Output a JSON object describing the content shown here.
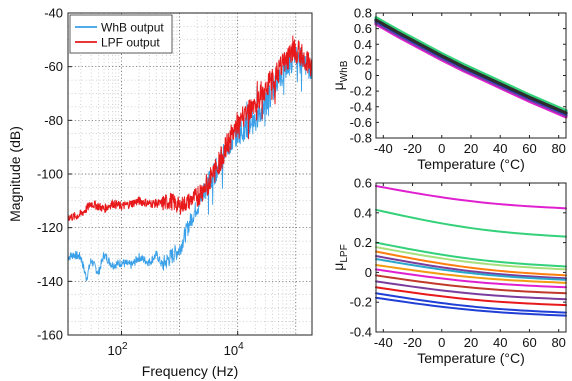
{
  "chart_data": [
    {
      "type": "line",
      "xlabel": "Frequency (Hz)",
      "ylabel": "Magnitude (dB)",
      "x_scale": "log",
      "xlim": [
        12,
        190000
      ],
      "ylim": [
        -160,
        -40
      ],
      "xticks": [
        100,
        10000
      ],
      "xtick_labels": [
        "10",
        "10"
      ],
      "xtick_exponents": [
        "2",
        "4"
      ],
      "yticks": [
        -160,
        -140,
        -120,
        -100,
        -80,
        -60,
        -40
      ],
      "ytick_labels": [
        "-160",
        "-140",
        "-120",
        "-100",
        "-80",
        "-60",
        "-40"
      ],
      "grid": true,
      "legend_placement": "top-left",
      "series": [
        {
          "name": "WhB output",
          "color": "#3aa0e8",
          "x": [
            12,
            15,
            20,
            25,
            30,
            40,
            50,
            70,
            100,
            150,
            200,
            300,
            400,
            500,
            700,
            1000,
            1500,
            2000,
            3000,
            5000,
            7000,
            10000,
            20000,
            30000,
            50000,
            70000,
            100000,
            150000,
            190000
          ],
          "y": [
            -131,
            -130,
            -131,
            -139,
            -132,
            -137,
            -130,
            -134,
            -133,
            -134,
            -131,
            -133,
            -130,
            -134,
            -131,
            -128,
            -118,
            -112,
            -104,
            -96,
            -89,
            -85,
            -80,
            -74,
            -65,
            -60,
            -56,
            -58,
            -63
          ]
        },
        {
          "name": "LPF output",
          "color": "#e8191b",
          "x": [
            12,
            15,
            20,
            25,
            30,
            40,
            50,
            70,
            100,
            150,
            200,
            300,
            400,
            500,
            700,
            1000,
            1500,
            2000,
            3000,
            5000,
            7000,
            10000,
            20000,
            30000,
            50000,
            70000,
            100000,
            150000,
            190000
          ],
          "y": [
            -116,
            -116,
            -115,
            -113,
            -111,
            -112,
            -113,
            -111,
            -112,
            -111,
            -110,
            -111,
            -111,
            -111,
            -110,
            -112,
            -110,
            -108,
            -104,
            -95,
            -88,
            -81,
            -74,
            -68,
            -62,
            -57,
            -54,
            -57,
            -60
          ]
        }
      ]
    },
    {
      "type": "line",
      "xlabel": "Temperature (°C)",
      "ylabel": "μ",
      "ylabel_sub": "WhB",
      "xlim": [
        -45,
        85
      ],
      "ylim": [
        -0.8,
        0.8
      ],
      "xticks": [
        -40,
        -20,
        0,
        20,
        40,
        60,
        80
      ],
      "xtick_labels": [
        "-40",
        "-20",
        "0",
        "20",
        "40",
        "60",
        "80"
      ],
      "yticks": [
        -0.8,
        -0.6,
        -0.4,
        -0.2,
        0,
        0.2,
        0.4,
        0.6,
        0.8
      ],
      "ytick_labels": [
        "-0.8",
        "-0.6",
        "-0.4",
        "-0.2",
        "0",
        "0.2",
        "0.4",
        "0.6",
        "0.8"
      ],
      "grid": false,
      "x": [
        -45,
        -30,
        -15,
        0,
        15,
        30,
        45,
        60,
        75,
        85
      ],
      "series": [
        {
          "color": "#e020d0",
          "y": [
            0.66,
            0.5,
            0.35,
            0.2,
            0.06,
            -0.07,
            -0.2,
            -0.33,
            -0.45,
            -0.53
          ]
        },
        {
          "color": "#7a3d9e",
          "y": [
            0.68,
            0.52,
            0.37,
            0.22,
            0.08,
            -0.05,
            -0.18,
            -0.31,
            -0.43,
            -0.51
          ]
        },
        {
          "color": "#1f3fd6",
          "y": [
            0.7,
            0.54,
            0.39,
            0.24,
            0.1,
            -0.03,
            -0.16,
            -0.29,
            -0.41,
            -0.49
          ]
        },
        {
          "color": "#2aa8c9",
          "y": [
            0.72,
            0.56,
            0.41,
            0.26,
            0.12,
            -0.01,
            -0.14,
            -0.27,
            -0.39,
            -0.47
          ]
        },
        {
          "color": "#33d17a",
          "y": [
            0.74,
            0.58,
            0.43,
            0.28,
            0.14,
            0.01,
            -0.12,
            -0.25,
            -0.37,
            -0.45
          ]
        },
        {
          "color": "#2d2d2d",
          "y": [
            0.71,
            0.55,
            0.4,
            0.25,
            0.11,
            -0.02,
            -0.15,
            -0.28,
            -0.4,
            -0.48
          ]
        }
      ]
    },
    {
      "type": "line",
      "xlabel": "Temperature (°C)",
      "ylabel": "μ",
      "ylabel_sub": "LPF",
      "xlim": [
        -45,
        85
      ],
      "ylim": [
        -0.4,
        0.6
      ],
      "xticks": [
        -40,
        -20,
        0,
        20,
        40,
        60,
        80
      ],
      "xtick_labels": [
        "-40",
        "-20",
        "0",
        "20",
        "40",
        "60",
        "80"
      ],
      "yticks": [
        -0.4,
        -0.2,
        0,
        0.2,
        0.4,
        0.6
      ],
      "ytick_labels": [
        "-0.4",
        "-0.2",
        "0",
        "0.2",
        "0.4",
        "0.6"
      ],
      "grid": false,
      "x": [
        -45,
        85
      ],
      "series": [
        {
          "color": "#e020d0",
          "y": [
            0.58,
            0.43
          ]
        },
        {
          "color": "#33d17a",
          "y": [
            0.42,
            0.24
          ]
        },
        {
          "color": "#33d17a",
          "y": [
            0.2,
            0.04
          ]
        },
        {
          "color": "#a7e07a",
          "y": [
            0.17,
            0.02
          ]
        },
        {
          "color": "#ff7f0e",
          "y": [
            0.14,
            -0.02
          ]
        },
        {
          "color": "#7a3d9e",
          "y": [
            0.11,
            -0.04
          ]
        },
        {
          "color": "#2aa8c9",
          "y": [
            0.09,
            -0.05
          ]
        },
        {
          "color": "#f39c12",
          "y": [
            0.05,
            -0.07
          ]
        },
        {
          "color": "#e020d0",
          "y": [
            0.02,
            -0.1
          ]
        },
        {
          "color": "#c0392b",
          "y": [
            -0.02,
            -0.14
          ]
        },
        {
          "color": "#7a3d9e",
          "y": [
            -0.06,
            -0.18
          ]
        },
        {
          "color": "#e8191b",
          "y": [
            -0.1,
            -0.22
          ]
        },
        {
          "color": "#1f3fd6",
          "y": [
            -0.14,
            -0.27
          ]
        },
        {
          "color": "#1f3fd6",
          "y": [
            -0.17,
            -0.29
          ]
        }
      ]
    }
  ]
}
